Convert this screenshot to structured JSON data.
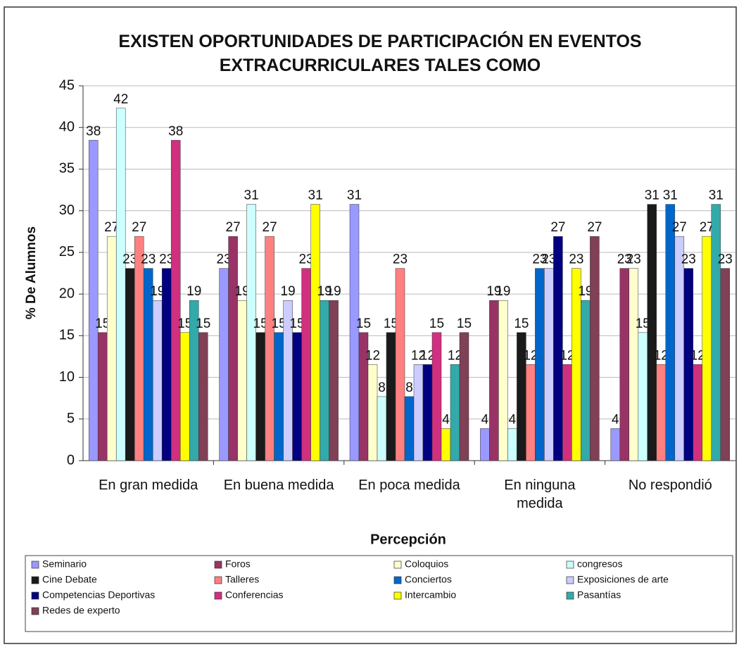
{
  "chart_data": {
    "type": "bar",
    "title": "EXISTEN OPORTUNIDADES DE PARTICIPACIÓN EN EVENTOS EXTRACURRICULARES TALES COMO",
    "x_label": "Percepción",
    "y_label": "% De Alumnos",
    "categories": [
      "En gran medida",
      "En buena medida",
      "En poca medida",
      "En ninguna medida",
      "No respondió"
    ],
    "ylim": [
      0,
      45
    ],
    "yticks": [
      0,
      5,
      10,
      15,
      20,
      25,
      30,
      35,
      40,
      45
    ],
    "grid": true,
    "legend": "bottom",
    "series": [
      {
        "name": "Seminario",
        "color": "#9999ff",
        "values": [
          38.46,
          23.08,
          30.77,
          3.85,
          3.85
        ],
        "value_labels": [
          "38",
          "23",
          "31",
          "4",
          "4"
        ]
      },
      {
        "name": "Foros",
        "color": "#993366",
        "values": [
          15.38,
          26.92,
          15.38,
          19.23,
          23.08
        ],
        "value_labels": [
          "15",
          "27",
          "15",
          "19",
          "23"
        ]
      },
      {
        "name": "Coloquios",
        "color": "#ffffcc",
        "values": [
          26.92,
          19.23,
          11.54,
          19.23,
          23.08
        ],
        "value_labels": [
          "27",
          "19",
          "12",
          "19",
          "23"
        ]
      },
      {
        "name": "congresos",
        "color": "#ccffff",
        "values": [
          42.31,
          30.77,
          7.69,
          3.85,
          15.38
        ],
        "value_labels": [
          "42",
          "31",
          "8",
          "4",
          "15"
        ]
      },
      {
        "name": "Cine Debate",
        "color": "#1a1a1a",
        "values": [
          23.08,
          15.38,
          15.38,
          15.38,
          30.77
        ],
        "value_labels": [
          "23",
          "15",
          "15",
          "15",
          "31"
        ]
      },
      {
        "name": "Talleres",
        "color": "#ff8080",
        "values": [
          26.92,
          26.92,
          23.08,
          11.54,
          11.54
        ],
        "value_labels": [
          "27",
          "27",
          "23",
          "12",
          "12"
        ]
      },
      {
        "name": "Conciertos",
        "color": "#0066cc",
        "values": [
          23.08,
          15.38,
          7.69,
          23.08,
          30.77
        ],
        "value_labels": [
          "23",
          "15",
          "8",
          "23",
          "31"
        ]
      },
      {
        "name": "Exposiciones de arte",
        "color": "#ccccff",
        "values": [
          19.23,
          19.23,
          11.54,
          23.08,
          26.92
        ],
        "value_labels": [
          "19",
          "19",
          "12",
          "23",
          "27"
        ]
      },
      {
        "name": "Competencias Deportivas",
        "color": "#000080",
        "values": [
          23.08,
          15.38,
          11.54,
          26.92,
          23.08
        ],
        "value_labels": [
          "23",
          "15",
          "12",
          "27",
          "23"
        ]
      },
      {
        "name": "Conferencias",
        "color": "#d12f7f",
        "values": [
          38.46,
          23.08,
          15.38,
          11.54,
          11.54
        ],
        "value_labels": [
          "38",
          "23",
          "15",
          "12",
          "12"
        ]
      },
      {
        "name": "Intercambio",
        "color": "#ffff00",
        "values": [
          15.38,
          30.77,
          3.85,
          23.08,
          26.92
        ],
        "value_labels": [
          "15",
          "31",
          "4",
          "23",
          "27"
        ]
      },
      {
        "name": "Pasantías",
        "color": "#33aaaa",
        "values": [
          19.23,
          19.23,
          11.54,
          19.23,
          30.77
        ],
        "value_labels": [
          "19",
          "19",
          "12",
          "19",
          "31"
        ]
      },
      {
        "name": "Redes de experto",
        "color": "#804055",
        "values": [
          15.38,
          19.23,
          15.38,
          26.92,
          23.08
        ],
        "value_labels": [
          "15",
          "19",
          "15",
          "27",
          "23"
        ]
      }
    ]
  }
}
